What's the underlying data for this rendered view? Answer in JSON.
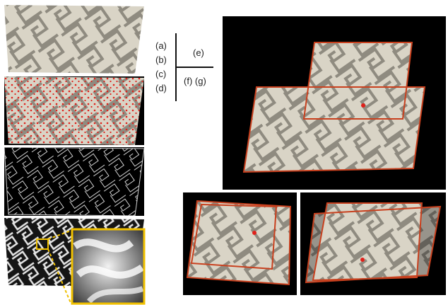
{
  "legend": {
    "a": "(a)",
    "b": "(b)",
    "c": "(c)",
    "d": "(d)",
    "e": "(e)",
    "fg": "(f) (g)"
  },
  "colors": {
    "background_black": "#000000",
    "fabric_light": "#d9d4c6",
    "fabric_dark": "#8f8b80",
    "keypoint_red": "#e0201a",
    "frame_red": "#c8401e",
    "zoom_yellow": "#f0c000"
  }
}
